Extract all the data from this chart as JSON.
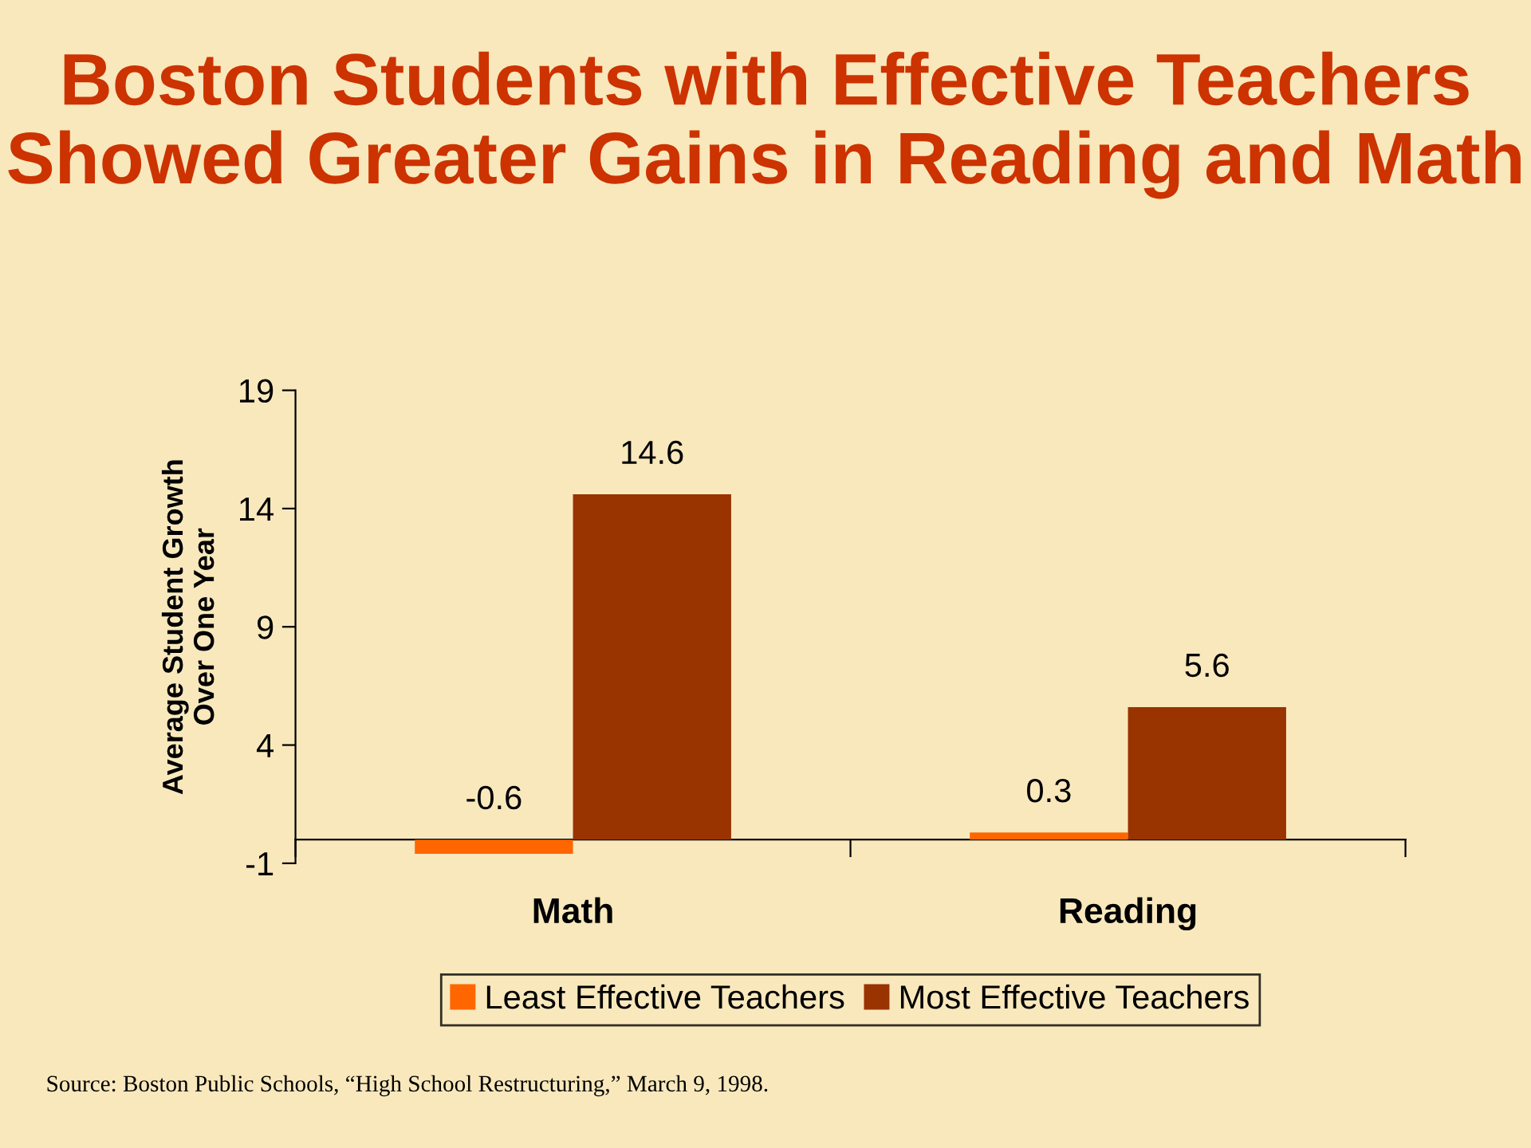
{
  "chart_data": {
    "type": "bar",
    "title": "Boston Students with Effective Teachers Showed Greater Gains in Reading and Math",
    "ylabel": "Average Student Growth\nOver One Year",
    "categories": [
      "Math",
      "Reading"
    ],
    "series": [
      {
        "name": "Least Effective Teachers",
        "color": "#ff6600",
        "values": [
          -0.6,
          0.3
        ]
      },
      {
        "name": "Most Effective Teachers",
        "color": "#993300",
        "values": [
          14.6,
          5.6
        ]
      }
    ],
    "ylim": [
      -1,
      19
    ],
    "yticks": [
      -1,
      4,
      9,
      14,
      19
    ],
    "grid": false,
    "legend": "bottom",
    "data_labels": true,
    "annotations": [
      "Source: Boston Public Schools, “High School Restructuring,” March 9, 1998."
    ]
  }
}
